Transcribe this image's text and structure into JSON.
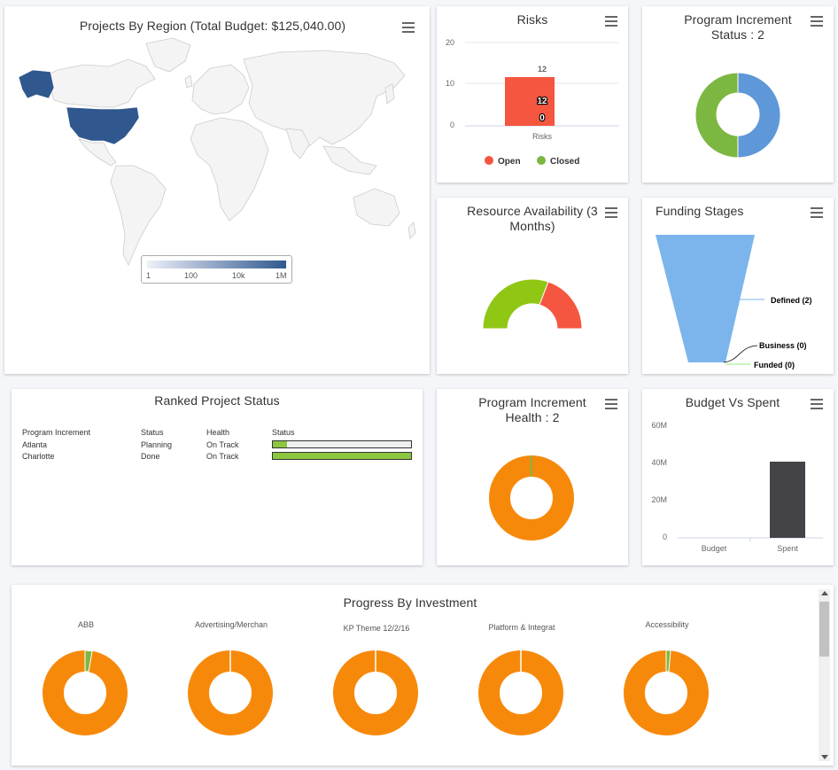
{
  "map": {
    "title": "Projects By Region (Total Budget: $125,040.00)",
    "legend": [
      "1",
      "100",
      "10k",
      "1M"
    ],
    "colors": {
      "high": "#30588f",
      "base": "#f4f4f4",
      "border": "#cccccc"
    }
  },
  "risks": {
    "title": "Risks",
    "y_ticks": [
      "20",
      "10",
      "0"
    ],
    "bar_label_top": "12",
    "bar_label_open": "12",
    "bar_label_closed": "0",
    "category": "Risks",
    "legend": [
      {
        "label": "Open",
        "color": "#f5563f"
      },
      {
        "label": "Closed",
        "color": "#7cb742"
      }
    ]
  },
  "pi_status": {
    "title": "Program Increment Status : 2"
  },
  "resource": {
    "title": "Resource Availability (3 Months)"
  },
  "funding": {
    "title": "Funding Stages",
    "stages": [
      "Defined (2)",
      "Business (0)",
      "Funded (0)"
    ]
  },
  "ranked": {
    "title": "Ranked Project Status",
    "headers": [
      "Program Increment",
      "Status",
      "Health",
      "Status"
    ],
    "rows": [
      {
        "name": "Atlanta",
        "status": "Planning",
        "health": "On Track",
        "progress": 0.1
      },
      {
        "name": "Charlotte",
        "status": "Done",
        "health": "On Track",
        "progress": 1.0
      }
    ]
  },
  "pi_health": {
    "title": "Program Increment Health : 2"
  },
  "budget": {
    "title": "Budget Vs Spent",
    "y_ticks": [
      "60M",
      "40M",
      "20M",
      "0"
    ],
    "categories": [
      "Budget",
      "Spent"
    ]
  },
  "progress": {
    "title": "Progress By Investment",
    "items": [
      {
        "label": "ABB",
        "done": 0.03
      },
      {
        "label": "Advertising/Merchan",
        "done": 0.0
      },
      {
        "label": "KP Theme 12/2/16",
        "done": 0.0
      },
      {
        "label": "Platform & Integrat",
        "done": 0.0
      },
      {
        "label": "Accessibility",
        "done": 0.02
      }
    ]
  },
  "chart_data": [
    {
      "type": "bar",
      "title": "Risks",
      "categories": [
        "Risks"
      ],
      "series": [
        {
          "name": "Open",
          "values": [
            12
          ]
        },
        {
          "name": "Closed",
          "values": [
            0
          ]
        }
      ],
      "ylim": [
        0,
        20
      ]
    },
    {
      "type": "pie",
      "title": "Program Increment Status : 2",
      "values": [
        1,
        1
      ],
      "colors": [
        "#5e98d9",
        "#7cb742"
      ]
    },
    {
      "type": "pie",
      "title": "Resource Availability (3 Months)",
      "values": [
        0.67,
        0.33
      ],
      "colors": [
        "#90c614",
        "#f5563f"
      ]
    },
    {
      "type": "bar",
      "title": "Budget Vs Spent",
      "categories": [
        "Budget",
        "Spent"
      ],
      "values": [
        0,
        41
      ],
      "ylim": [
        0,
        60
      ]
    },
    {
      "type": "pie",
      "title": "Program Increment Health : 2",
      "values": [
        0.99,
        0.01
      ],
      "colors": [
        "#f7890a",
        "#7cb742"
      ]
    }
  ]
}
